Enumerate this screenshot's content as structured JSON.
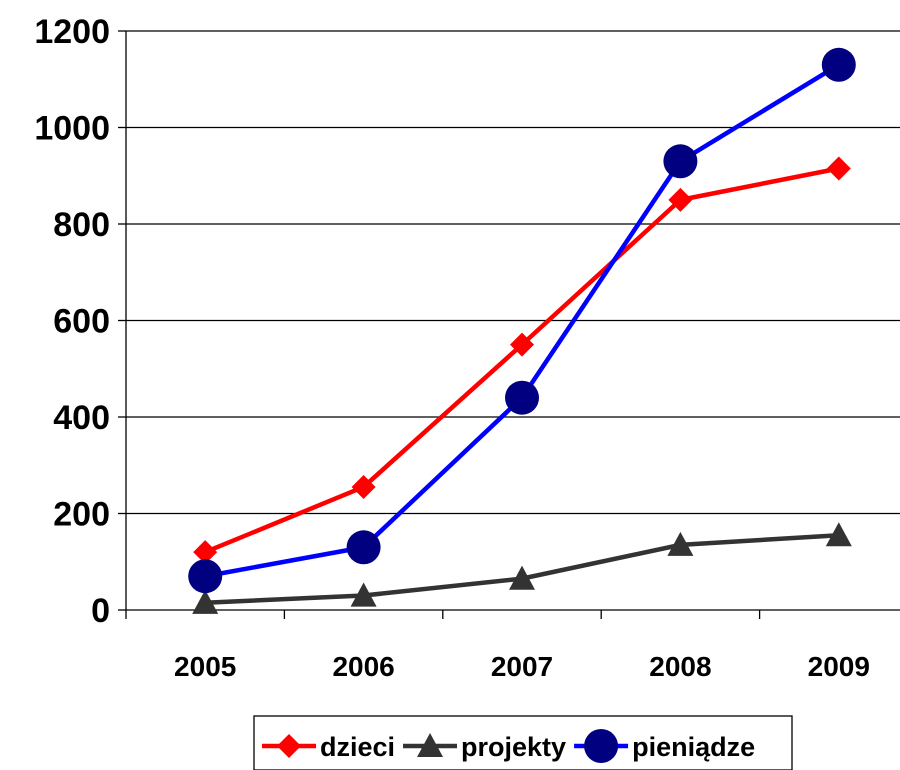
{
  "chart_data": {
    "type": "line",
    "title": "",
    "xlabel": "",
    "ylabel": "",
    "categories": [
      "2005",
      "2006",
      "2007",
      "2008",
      "2009"
    ],
    "ylim": [
      0,
      1200
    ],
    "yticks": [
      0,
      200,
      400,
      600,
      800,
      1000,
      1200
    ],
    "grid": "horizontal",
    "legend_position": "bottom",
    "series": [
      {
        "name": "dzieci",
        "values": [
          120,
          255,
          550,
          850,
          915
        ],
        "color": "#ff0000",
        "marker": "diamond"
      },
      {
        "name": "projekty",
        "values": [
          15,
          30,
          65,
          135,
          155
        ],
        "color": "#333333",
        "marker": "triangle"
      },
      {
        "name": "pieniądze",
        "values": [
          70,
          130,
          440,
          930,
          1130
        ],
        "color": "#0000ff",
        "marker": "circle",
        "marker_color": "#000080"
      }
    ]
  }
}
